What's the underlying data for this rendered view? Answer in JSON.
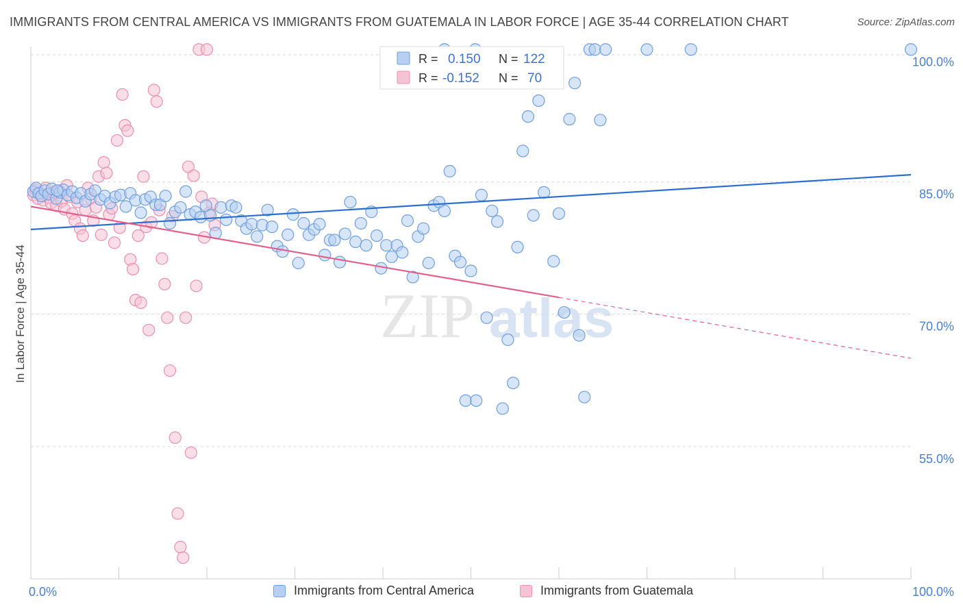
{
  "header": {
    "title": "IMMIGRANTS FROM CENTRAL AMERICA VS IMMIGRANTS FROM GUATEMALA IN LABOR FORCE | AGE 35-44 CORRELATION CHART",
    "source": "Source: ZipAtlas.com"
  },
  "watermark": {
    "zip": "ZIP",
    "atlas": "atlas"
  },
  "colors": {
    "blue": "#6f9fde",
    "blue_fill": "#b7cff2",
    "blue_line": "#2b6ecf",
    "pink": "#ec8fae",
    "pink_fill": "#f6c3d4",
    "pink_line": "#e0608e",
    "axis_label": "#4a7fd0",
    "grid": "#d9d9d9"
  },
  "legend": {
    "r_label": "R =",
    "n_label": "N =",
    "series": [
      {
        "name": "Immigrants from Central America",
        "r": "0.150",
        "n": "122"
      },
      {
        "name": "Immigrants from Guatemala",
        "r": "-0.152",
        "n": "70"
      }
    ]
  },
  "chart_data": {
    "type": "scatter",
    "title": "IMMIGRANTS FROM CENTRAL AMERICA VS IMMIGRANTS FROM GUATEMALA IN LABOR FORCE | AGE 35-44 CORRELATION CHART",
    "xlabel": "",
    "ylabel": "In Labor Force | Age 35-44",
    "xlim": [
      0,
      100
    ],
    "ylim": [
      40,
      100
    ],
    "x_tick_labels": [
      "0.0%",
      "100.0%"
    ],
    "y_ticks": [
      {
        "value": 100,
        "label": "100.0%"
      },
      {
        "value": 85,
        "label": "85.0%"
      },
      {
        "value": 70,
        "label": "70.0%"
      },
      {
        "value": 55,
        "label": "55.0%"
      }
    ],
    "grid": true,
    "legend_position": "top-center",
    "series": [
      {
        "name": "Immigrants from Central America",
        "trend": {
          "x": [
            0,
            100
          ],
          "y": [
            79.6,
            85.8
          ]
        },
        "points": [
          [
            0.3,
            83.9
          ],
          [
            0.6,
            84.3
          ],
          [
            0.9,
            83.7
          ],
          [
            1.2,
            83.4
          ],
          [
            1.6,
            84.0
          ],
          [
            2.0,
            83.6
          ],
          [
            2.4,
            84.2
          ],
          [
            2.9,
            83.1
          ],
          [
            3.3,
            83.8
          ],
          [
            3.7,
            84.1
          ],
          [
            4.2,
            83.5
          ],
          [
            4.7,
            83.9
          ],
          [
            5.2,
            83.2
          ],
          [
            5.7,
            83.7
          ],
          [
            6.2,
            82.8
          ],
          [
            6.8,
            83.6
          ],
          [
            7.3,
            84.0
          ],
          [
            7.9,
            83.0
          ],
          [
            8.4,
            83.4
          ],
          [
            9.0,
            82.6
          ],
          [
            9.6,
            83.3
          ],
          [
            10.2,
            83.5
          ],
          [
            10.8,
            82.2
          ],
          [
            11.3,
            83.7
          ],
          [
            11.9,
            82.9
          ],
          [
            12.5,
            81.5
          ],
          [
            13.0,
            83.0
          ],
          [
            13.6,
            83.3
          ],
          [
            14.2,
            82.4
          ],
          [
            14.7,
            82.4
          ],
          [
            15.3,
            83.4
          ],
          [
            15.8,
            80.3
          ],
          [
            16.4,
            81.6
          ],
          [
            17.0,
            82.1
          ],
          [
            17.6,
            83.9
          ],
          [
            18.1,
            81.3
          ],
          [
            18.7,
            81.6
          ],
          [
            19.3,
            81.0
          ],
          [
            19.9,
            82.3
          ],
          [
            20.4,
            81.2
          ],
          [
            21.0,
            79.2
          ],
          [
            21.6,
            82.1
          ],
          [
            22.2,
            80.7
          ],
          [
            22.8,
            82.3
          ],
          [
            23.3,
            82.1
          ],
          [
            23.9,
            80.6
          ],
          [
            24.5,
            79.7
          ],
          [
            25.1,
            80.2
          ],
          [
            25.7,
            78.8
          ],
          [
            26.3,
            80.1
          ],
          [
            26.9,
            81.8
          ],
          [
            27.4,
            79.9
          ],
          [
            28.0,
            77.7
          ],
          [
            28.6,
            77.1
          ],
          [
            29.2,
            79.0
          ],
          [
            29.8,
            81.3
          ],
          [
            30.4,
            75.8
          ],
          [
            31.0,
            80.3
          ],
          [
            31.6,
            79.0
          ],
          [
            32.2,
            79.6
          ],
          [
            32.8,
            80.2
          ],
          [
            33.4,
            76.7
          ],
          [
            34.0,
            78.4
          ],
          [
            34.5,
            78.4
          ],
          [
            35.1,
            75.9
          ],
          [
            35.7,
            79.1
          ],
          [
            36.3,
            82.7
          ],
          [
            36.9,
            78.2
          ],
          [
            37.5,
            80.3
          ],
          [
            38.1,
            77.8
          ],
          [
            38.7,
            81.6
          ],
          [
            39.3,
            78.9
          ],
          [
            39.8,
            75.2
          ],
          [
            40.4,
            77.8
          ],
          [
            41.0,
            76.5
          ],
          [
            41.6,
            77.8
          ],
          [
            42.2,
            77.0
          ],
          [
            42.8,
            80.6
          ],
          [
            43.4,
            74.2
          ],
          [
            44.0,
            78.8
          ],
          [
            44.6,
            79.7
          ],
          [
            45.2,
            75.8
          ],
          [
            45.8,
            82.3
          ],
          [
            46.4,
            82.7
          ],
          [
            47.0,
            81.7
          ],
          [
            47.6,
            86.2
          ],
          [
            48.2,
            76.6
          ],
          [
            48.8,
            75.9
          ],
          [
            49.4,
            60.2
          ],
          [
            50.0,
            74.9
          ],
          [
            50.6,
            60.2
          ],
          [
            51.2,
            83.5
          ],
          [
            51.8,
            69.6
          ],
          [
            52.4,
            81.7
          ],
          [
            53.0,
            80.5
          ],
          [
            53.6,
            59.3
          ],
          [
            54.2,
            67.1
          ],
          [
            54.8,
            62.2
          ],
          [
            55.3,
            77.6
          ],
          [
            55.9,
            88.5
          ],
          [
            56.5,
            92.4
          ],
          [
            57.1,
            81.2
          ],
          [
            57.7,
            94.2
          ],
          [
            58.3,
            83.8
          ],
          [
            58.8,
            97.8
          ],
          [
            59.4,
            76.0
          ],
          [
            60.0,
            81.4
          ],
          [
            60.6,
            70.2
          ],
          [
            61.2,
            92.1
          ],
          [
            61.8,
            96.2
          ],
          [
            62.3,
            67.6
          ],
          [
            62.9,
            60.6
          ],
          [
            63.5,
            100
          ],
          [
            64.1,
            100
          ],
          [
            64.7,
            92.0
          ],
          [
            65.3,
            100
          ],
          [
            70.0,
            100
          ],
          [
            75.0,
            100
          ],
          [
            100.0,
            100
          ],
          [
            50.5,
            100
          ],
          [
            47.0,
            100
          ],
          [
            3.0,
            84.0
          ]
        ]
      },
      {
        "name": "Immigrants from Guatemala",
        "trend": {
          "x": [
            0,
            60
          ],
          "y": [
            82.2,
            71.9
          ]
        },
        "trend_dashed": {
          "x": [
            60,
            100
          ],
          "y": [
            71.9,
            65.0
          ]
        },
        "points": [
          [
            0.3,
            83.5
          ],
          [
            0.5,
            84.1
          ],
          [
            0.8,
            83.1
          ],
          [
            1.1,
            83.7
          ],
          [
            1.4,
            82.9
          ],
          [
            1.7,
            84.3
          ],
          [
            2.0,
            83.2
          ],
          [
            2.3,
            82.6
          ],
          [
            2.6,
            83.8
          ],
          [
            2.9,
            82.3
          ],
          [
            3.2,
            84.0
          ],
          [
            3.5,
            82.8
          ],
          [
            3.8,
            81.9
          ],
          [
            4.1,
            84.6
          ],
          [
            4.4,
            83.3
          ],
          [
            4.7,
            81.4
          ],
          [
            5.0,
            80.6
          ],
          [
            5.3,
            82.7
          ],
          [
            5.6,
            79.7
          ],
          [
            5.9,
            78.9
          ],
          [
            6.2,
            81.8
          ],
          [
            6.5,
            84.3
          ],
          [
            6.8,
            83.1
          ],
          [
            7.1,
            80.6
          ],
          [
            7.4,
            82.1
          ],
          [
            7.7,
            85.6
          ],
          [
            8.0,
            79.0
          ],
          [
            8.3,
            87.2
          ],
          [
            8.6,
            86.0
          ],
          [
            8.9,
            81.3
          ],
          [
            9.2,
            82.0
          ],
          [
            9.5,
            78.1
          ],
          [
            9.8,
            89.7
          ],
          [
            10.1,
            79.8
          ],
          [
            10.4,
            94.9
          ],
          [
            10.7,
            91.4
          ],
          [
            11.0,
            90.8
          ],
          [
            11.3,
            76.2
          ],
          [
            11.6,
            75.1
          ],
          [
            11.9,
            71.6
          ],
          [
            12.2,
            78.9
          ],
          [
            12.5,
            71.3
          ],
          [
            12.8,
            85.6
          ],
          [
            13.1,
            79.9
          ],
          [
            13.4,
            68.2
          ],
          [
            13.7,
            80.4
          ],
          [
            14.0,
            95.4
          ],
          [
            14.3,
            94.1
          ],
          [
            14.6,
            81.8
          ],
          [
            14.9,
            76.3
          ],
          [
            15.2,
            73.4
          ],
          [
            15.5,
            69.6
          ],
          [
            15.8,
            63.6
          ],
          [
            16.1,
            81.1
          ],
          [
            16.4,
            56.0
          ],
          [
            16.7,
            47.4
          ],
          [
            17.0,
            43.6
          ],
          [
            17.3,
            42.4
          ],
          [
            17.6,
            69.6
          ],
          [
            17.9,
            86.7
          ],
          [
            18.2,
            54.3
          ],
          [
            18.5,
            85.7
          ],
          [
            18.8,
            73.2
          ],
          [
            19.1,
            100
          ],
          [
            19.4,
            83.3
          ],
          [
            19.7,
            78.7
          ],
          [
            20.0,
            100
          ],
          [
            20.3,
            81.5
          ],
          [
            20.6,
            82.5
          ],
          [
            20.9,
            80.1
          ]
        ]
      }
    ]
  }
}
